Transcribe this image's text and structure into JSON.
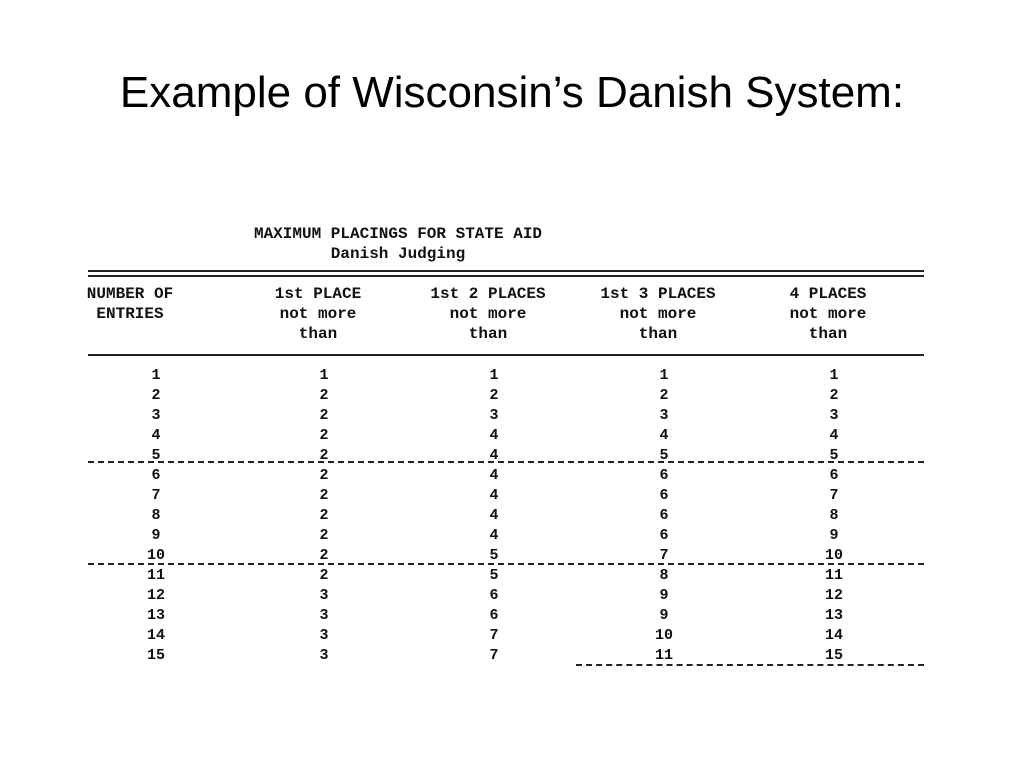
{
  "slide": {
    "title": "Example of Wisconsin’s Danish System:"
  },
  "document": {
    "title_line1": "MAXIMUM PLACINGS FOR STATE AID",
    "title_line2": "Danish Judging",
    "columns": [
      "NUMBER OF\nENTRIES",
      "1st PLACE\nnot more\nthan",
      "1st 2 PLACES\nnot more\nthan",
      "1st 3 PLACES\nnot more\nthan",
      "4 PLACES\nnot more\nthan"
    ],
    "rows": [
      [
        "1",
        "1",
        "1",
        "1",
        "1"
      ],
      [
        "2",
        "2",
        "2",
        "2",
        "2"
      ],
      [
        "3",
        "2",
        "3",
        "3",
        "3"
      ],
      [
        "4",
        "2",
        "4",
        "4",
        "4"
      ],
      [
        "5",
        "2",
        "4",
        "5",
        "5"
      ],
      [
        "6",
        "2",
        "4",
        "6",
        "6"
      ],
      [
        "7",
        "2",
        "4",
        "6",
        "7"
      ],
      [
        "8",
        "2",
        "4",
        "6",
        "8"
      ],
      [
        "9",
        "2",
        "4",
        "6",
        "9"
      ],
      [
        "10",
        "2",
        "5",
        "7",
        "10"
      ],
      [
        "11",
        "2",
        "5",
        "8",
        "11"
      ],
      [
        "12",
        "3",
        "6",
        "9",
        "12"
      ],
      [
        "13",
        "3",
        "6",
        "9",
        "13"
      ],
      [
        "14",
        "3",
        "7",
        "10",
        "14"
      ],
      [
        "15",
        "3",
        "7",
        "11",
        "15"
      ]
    ]
  }
}
